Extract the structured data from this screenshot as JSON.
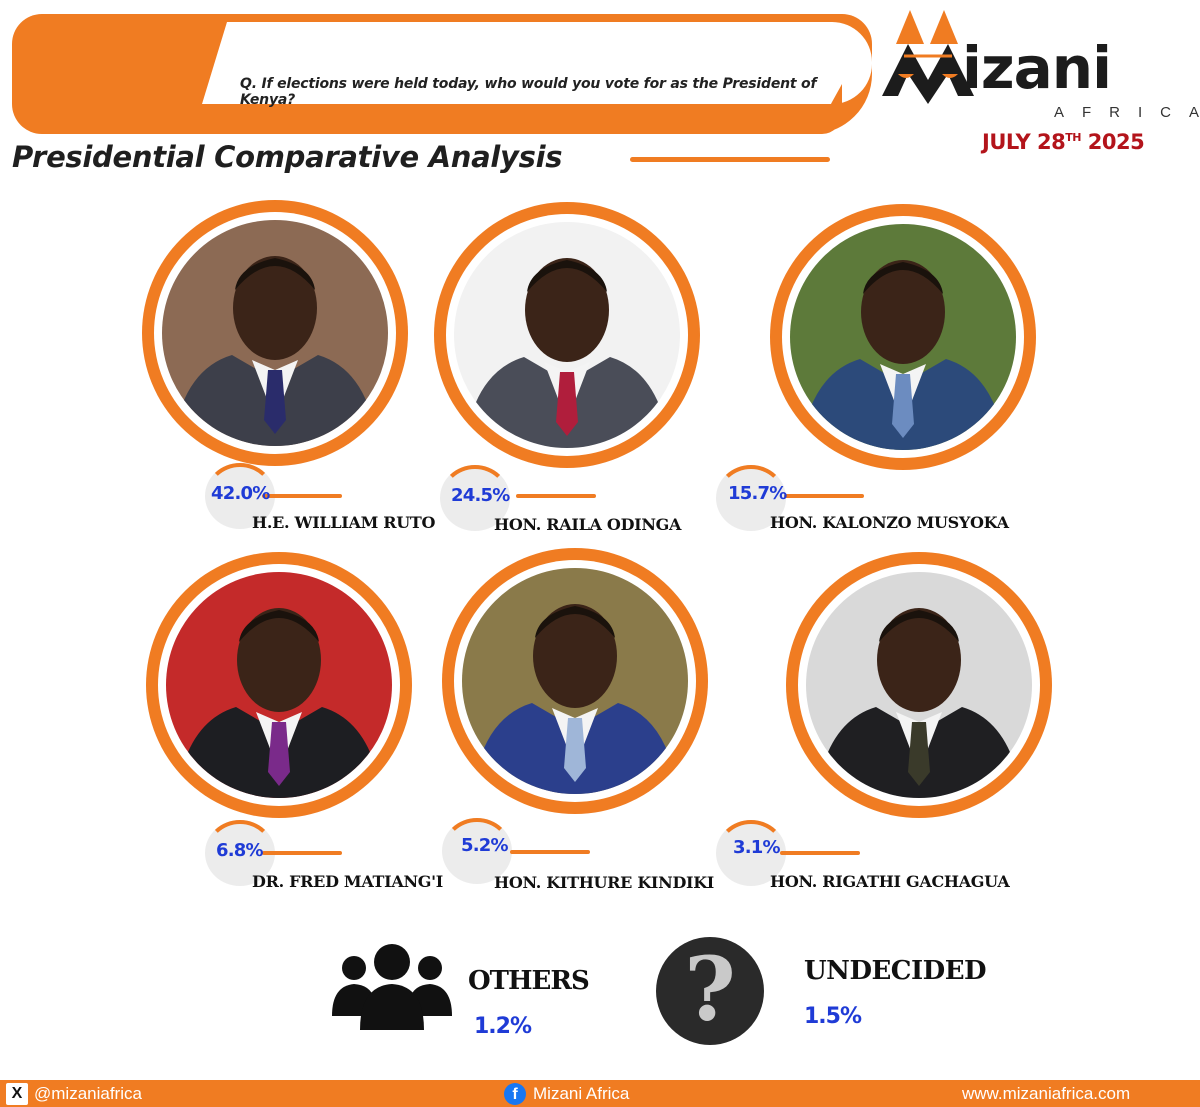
{
  "header": {
    "question": "Q. If elections were held today, who would you vote for as the President of Kenya?",
    "title": "Presidential Comparative Analysis",
    "date_prefix": "JULY 28",
    "date_sup": "TH",
    "date_year": "2025"
  },
  "logo": {
    "word": "izani",
    "sub": "AFRICA"
  },
  "candidates": [
    {
      "name": "H.E. WILLIAM RUTO",
      "pct": "42.0%",
      "suit": "#3d3f4a",
      "tie": "#2a2c6b",
      "bg": "#8c6a54"
    },
    {
      "name": "HON. RAILA ODINGA",
      "pct": "24.5%",
      "suit": "#4a4d58",
      "tie": "#b01e3c",
      "bg": "#f2f2f2"
    },
    {
      "name": "HON. KALONZO MUSYOKA",
      "pct": "15.7%",
      "suit": "#2c4a7a",
      "tie": "#6c8cc0",
      "bg": "#5d7a3a"
    },
    {
      "name": "DR. FRED MATIANG'I",
      "pct": "6.8%",
      "suit": "#1d1e22",
      "tie": "#7a2a8a",
      "bg": "#c42a2a"
    },
    {
      "name": "HON. KITHURE KINDIKI",
      "pct": "5.2%",
      "suit": "#2b3f8c",
      "tie": "#9fb6d8",
      "bg": "#8a7a4a"
    },
    {
      "name": "HON. RIGATHI GACHAGUA",
      "pct": "3.1%",
      "suit": "#1f1f22",
      "tie": "#3a3a2a",
      "bg": "#d9d9d9"
    }
  ],
  "others": {
    "label": "OTHERS",
    "value": "1.2%"
  },
  "undecided": {
    "label": "UNDECIDED",
    "value": "1.5%",
    "glyph": "?"
  },
  "footer": {
    "x_glyph": "X",
    "handle": "@mizaniafrica",
    "fb_glyph": "f",
    "page": "Mizani Africa",
    "website": "www.mizaniafrica.com"
  },
  "colors": {
    "accent": "#f07c22",
    "percent": "#1f3bd6",
    "date": "#b3141b"
  }
}
